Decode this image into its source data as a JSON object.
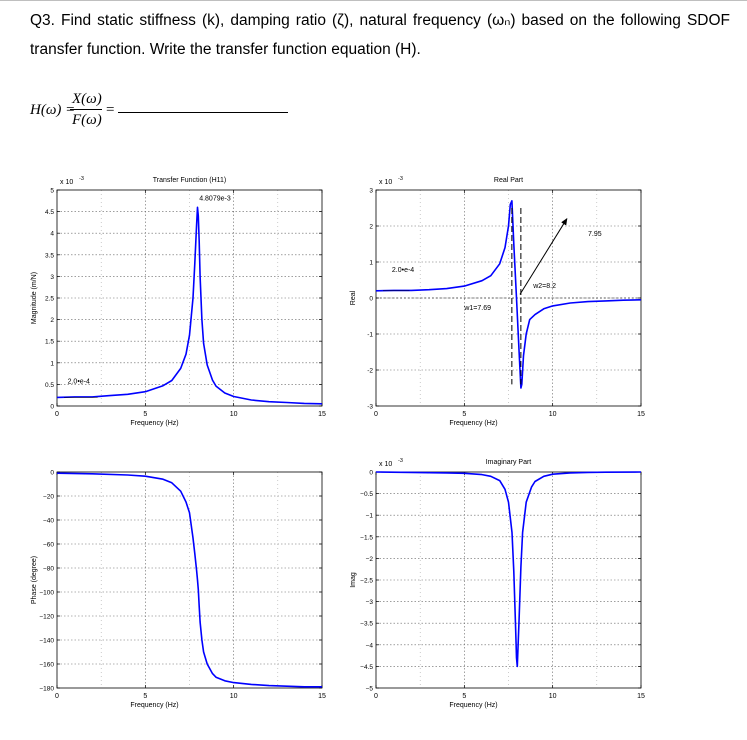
{
  "question": {
    "text": "Q3. Find static stiffness (k), damping ratio (ζ), natural frequency (ωₙ) based on the following SDOF transfer function. Write the transfer function equation (H)."
  },
  "equation": {
    "lhs": "H(ω) =",
    "numerator": "X(ω)",
    "denominator": "F(ω)",
    "equals": "="
  },
  "chart_data": [
    {
      "id": "magnitude",
      "type": "line",
      "title": "Transfer Function (H11)",
      "xlabel": "Frequency (Hz)",
      "ylabel": "Magnitude (m/N)",
      "exponent_label": "x 10",
      "exponent": "-3",
      "xlim": [
        0,
        15
      ],
      "ylim": [
        0,
        5
      ],
      "xticks": [
        0,
        5,
        10,
        15
      ],
      "yticks": [
        0,
        0.5,
        1,
        1.5,
        2,
        2.5,
        3,
        3.5,
        4,
        4.5,
        5
      ],
      "xtick_labels": [
        "0",
        "5",
        "10",
        "15"
      ],
      "ytick_labels": [
        "0",
        "0.5",
        "1",
        "1.5",
        "2",
        "2.5",
        "3",
        "3.5",
        "4",
        "4.5",
        "5"
      ],
      "grid": true,
      "series": [
        {
          "color": "#0000ff",
          "x": [
            0,
            1,
            2,
            3,
            4,
            5,
            6,
            6.5,
            7,
            7.3,
            7.5,
            7.7,
            7.8,
            7.9,
            7.95,
            8.0,
            8.05,
            8.1,
            8.2,
            8.3,
            8.5,
            8.8,
            9,
            9.5,
            10,
            11,
            12,
            13,
            14,
            15
          ],
          "y": [
            0.2,
            0.21,
            0.21,
            0.24,
            0.27,
            0.33,
            0.47,
            0.59,
            0.87,
            1.2,
            1.64,
            2.5,
            3.3,
            4.2,
            4.6,
            4.4,
            3.8,
            3.0,
            2.0,
            1.45,
            0.95,
            0.6,
            0.46,
            0.3,
            0.22,
            0.14,
            0.1,
            0.08,
            0.06,
            0.05
          ]
        }
      ],
      "annotations": [
        {
          "text": "4.8079e-3",
          "x": 8.05,
          "y": 4.76
        },
        {
          "text": "2.0•e-4",
          "x": 0.6,
          "y": 0.52
        }
      ]
    },
    {
      "id": "real",
      "type": "line",
      "title": "Real Part",
      "xlabel": "Frequency (Hz)",
      "ylabel": "Real",
      "exponent_label": "x 10",
      "exponent": "-3",
      "xlim": [
        0,
        15
      ],
      "ylim": [
        -3,
        3
      ],
      "xticks": [
        0,
        5,
        10,
        15
      ],
      "yticks": [
        -3,
        -2,
        -1,
        0,
        1,
        2,
        3
      ],
      "xtick_labels": [
        "0",
        "5",
        "10",
        "15"
      ],
      "ytick_labels": [
        "-3",
        "-2",
        "-1",
        "0",
        "1",
        "2",
        "3"
      ],
      "grid": true,
      "series": [
        {
          "color": "#0000ff",
          "x": [
            0,
            1,
            2,
            3,
            4,
            5,
            6,
            6.5,
            7,
            7.3,
            7.5,
            7.6,
            7.69,
            7.8,
            7.95,
            8.1,
            8.2,
            8.25,
            8.35,
            8.5,
            8.7,
            9,
            9.5,
            10,
            11,
            12,
            13,
            14,
            15
          ],
          "y": [
            0.2,
            0.21,
            0.21,
            0.23,
            0.26,
            0.33,
            0.48,
            0.62,
            0.95,
            1.4,
            2.0,
            2.6,
            2.7,
            1.5,
            0.0,
            -1.5,
            -2.5,
            -2.4,
            -1.6,
            -1.0,
            -0.6,
            -0.46,
            -0.3,
            -0.22,
            -0.14,
            -0.1,
            -0.08,
            -0.06,
            -0.05
          ]
        }
      ],
      "annotations": [
        {
          "text": "2.0•e-4",
          "x": 0.9,
          "y": 0.72
        },
        {
          "text": "w1=7.69",
          "x": 5.0,
          "y": -0.34
        },
        {
          "text": "w2=8.2",
          "x": 8.9,
          "y": 0.28
        },
        {
          "text": "7.95",
          "x": 12.0,
          "y": 1.72
        }
      ]
    },
    {
      "id": "phase",
      "type": "line",
      "xlabel": "Frequency (Hz)",
      "ylabel": "Phase (degree)",
      "xlim": [
        0,
        15
      ],
      "ylim": [
        -180,
        0
      ],
      "xticks": [
        0,
        5,
        10,
        15
      ],
      "yticks": [
        -180,
        -160,
        -140,
        -120,
        -100,
        -80,
        -60,
        -40,
        -20,
        0
      ],
      "xtick_labels": [
        "0",
        "5",
        "10",
        "15"
      ],
      "ytick_labels": [
        "-180",
        "-160",
        "-140",
        "-120",
        "-100",
        "-80",
        "-60",
        "-40",
        "-20",
        "0"
      ],
      "grid": true,
      "series": [
        {
          "color": "#0000ff",
          "x": [
            0,
            2,
            4,
            5,
            6,
            6.5,
            7,
            7.3,
            7.5,
            7.7,
            7.8,
            7.9,
            7.95,
            8.0,
            8.05,
            8.1,
            8.2,
            8.3,
            8.5,
            8.8,
            9,
            9.5,
            10,
            11,
            12,
            13,
            14,
            15
          ],
          "y": [
            -1,
            -1.5,
            -2.5,
            -3.5,
            -6,
            -9,
            -16,
            -25,
            -34,
            -55,
            -68,
            -82,
            -90,
            -98,
            -112,
            -125,
            -140,
            -150,
            -160,
            -168,
            -171,
            -174,
            -175.5,
            -177,
            -178,
            -178.5,
            -179,
            -179
          ]
        }
      ]
    },
    {
      "id": "imaginary",
      "type": "line",
      "title": "Imaginary Part",
      "xlabel": "Frequency (Hz)",
      "ylabel": "Imag",
      "exponent_label": "x 10",
      "exponent": "-3",
      "xlim": [
        0,
        15
      ],
      "ylim": [
        -5,
        0
      ],
      "xticks": [
        0,
        5,
        10,
        15
      ],
      "yticks": [
        -5,
        -4.5,
        -4,
        -3.5,
        -3,
        -2.5,
        -2,
        -1.5,
        -1,
        -0.5,
        0
      ],
      "xtick_labels": [
        "0",
        "5",
        "10",
        "15"
      ],
      "ytick_labels": [
        "-5",
        "-4.5",
        "-4",
        "-3.5",
        "-3",
        "-2.5",
        "-2",
        "-1.5",
        "-1",
        "-0.5",
        "0"
      ],
      "grid": true,
      "series": [
        {
          "color": "#0000ff",
          "x": [
            0,
            2,
            4,
            5,
            6,
            6.5,
            7,
            7.3,
            7.5,
            7.7,
            7.8,
            7.9,
            7.95,
            8.0,
            8.1,
            8.2,
            8.3,
            8.5,
            8.8,
            9,
            9.5,
            10,
            11,
            12,
            13,
            15
          ],
          "y": [
            0,
            -0.01,
            -0.02,
            -0.03,
            -0.06,
            -0.1,
            -0.2,
            -0.4,
            -0.7,
            -1.4,
            -2.3,
            -3.6,
            -4.3,
            -4.5,
            -3.4,
            -2.2,
            -1.4,
            -0.7,
            -0.35,
            -0.22,
            -0.1,
            -0.05,
            -0.02,
            -0.01,
            -0.005,
            0
          ]
        }
      ]
    }
  ]
}
